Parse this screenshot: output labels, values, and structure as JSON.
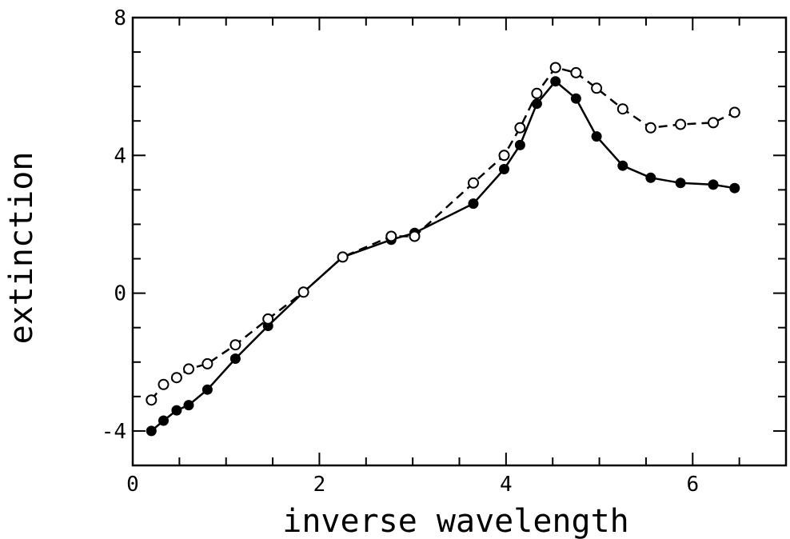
{
  "chart_data": {
    "type": "line",
    "title": "",
    "xlabel": "inverse wavelength",
    "ylabel": "extinction",
    "xlim": [
      0,
      7
    ],
    "ylim": [
      -5,
      8
    ],
    "xticks_labeled": [
      0,
      2,
      4,
      6
    ],
    "xticks_minor_step": 0.5,
    "yticks_labeled": [
      -4,
      0,
      4,
      8
    ],
    "yticks_minor_step": 1,
    "grid": false,
    "legend": "none",
    "series": [
      {
        "marker": "filled-circle",
        "line": "solid",
        "color": "#000000",
        "points": [
          [
            0.2,
            -4.0
          ],
          [
            0.33,
            -3.7
          ],
          [
            0.47,
            -3.4
          ],
          [
            0.6,
            -3.25
          ],
          [
            0.8,
            -2.8
          ],
          [
            1.1,
            -1.9
          ],
          [
            1.45,
            -0.95
          ],
          [
            1.83,
            0.03
          ],
          [
            2.25,
            1.05
          ],
          [
            2.77,
            1.55
          ],
          [
            3.02,
            1.75
          ],
          [
            3.65,
            2.6
          ],
          [
            3.98,
            3.6
          ],
          [
            4.15,
            4.3
          ],
          [
            4.33,
            5.5
          ],
          [
            4.53,
            6.15
          ],
          [
            4.75,
            5.65
          ],
          [
            4.97,
            4.55
          ],
          [
            5.25,
            3.7
          ],
          [
            5.55,
            3.35
          ],
          [
            5.87,
            3.2
          ],
          [
            6.22,
            3.15
          ],
          [
            6.45,
            3.05
          ]
        ]
      },
      {
        "marker": "open-circle",
        "line": "dashed",
        "color": "#000000",
        "points": [
          [
            0.2,
            -3.1
          ],
          [
            0.33,
            -2.65
          ],
          [
            0.47,
            -2.45
          ],
          [
            0.6,
            -2.2
          ],
          [
            0.8,
            -2.05
          ],
          [
            1.1,
            -1.5
          ],
          [
            1.45,
            -0.75
          ],
          [
            1.83,
            0.03
          ],
          [
            2.25,
            1.05
          ],
          [
            2.77,
            1.65
          ],
          [
            3.02,
            1.65
          ],
          [
            3.65,
            3.2
          ],
          [
            3.98,
            4.0
          ],
          [
            4.15,
            4.8
          ],
          [
            4.33,
            5.8
          ],
          [
            4.53,
            6.55
          ],
          [
            4.75,
            6.4
          ],
          [
            4.97,
            5.95
          ],
          [
            5.25,
            5.35
          ],
          [
            5.55,
            4.8
          ],
          [
            5.87,
            4.9
          ],
          [
            6.22,
            4.95
          ],
          [
            6.45,
            5.25
          ]
        ]
      }
    ]
  }
}
